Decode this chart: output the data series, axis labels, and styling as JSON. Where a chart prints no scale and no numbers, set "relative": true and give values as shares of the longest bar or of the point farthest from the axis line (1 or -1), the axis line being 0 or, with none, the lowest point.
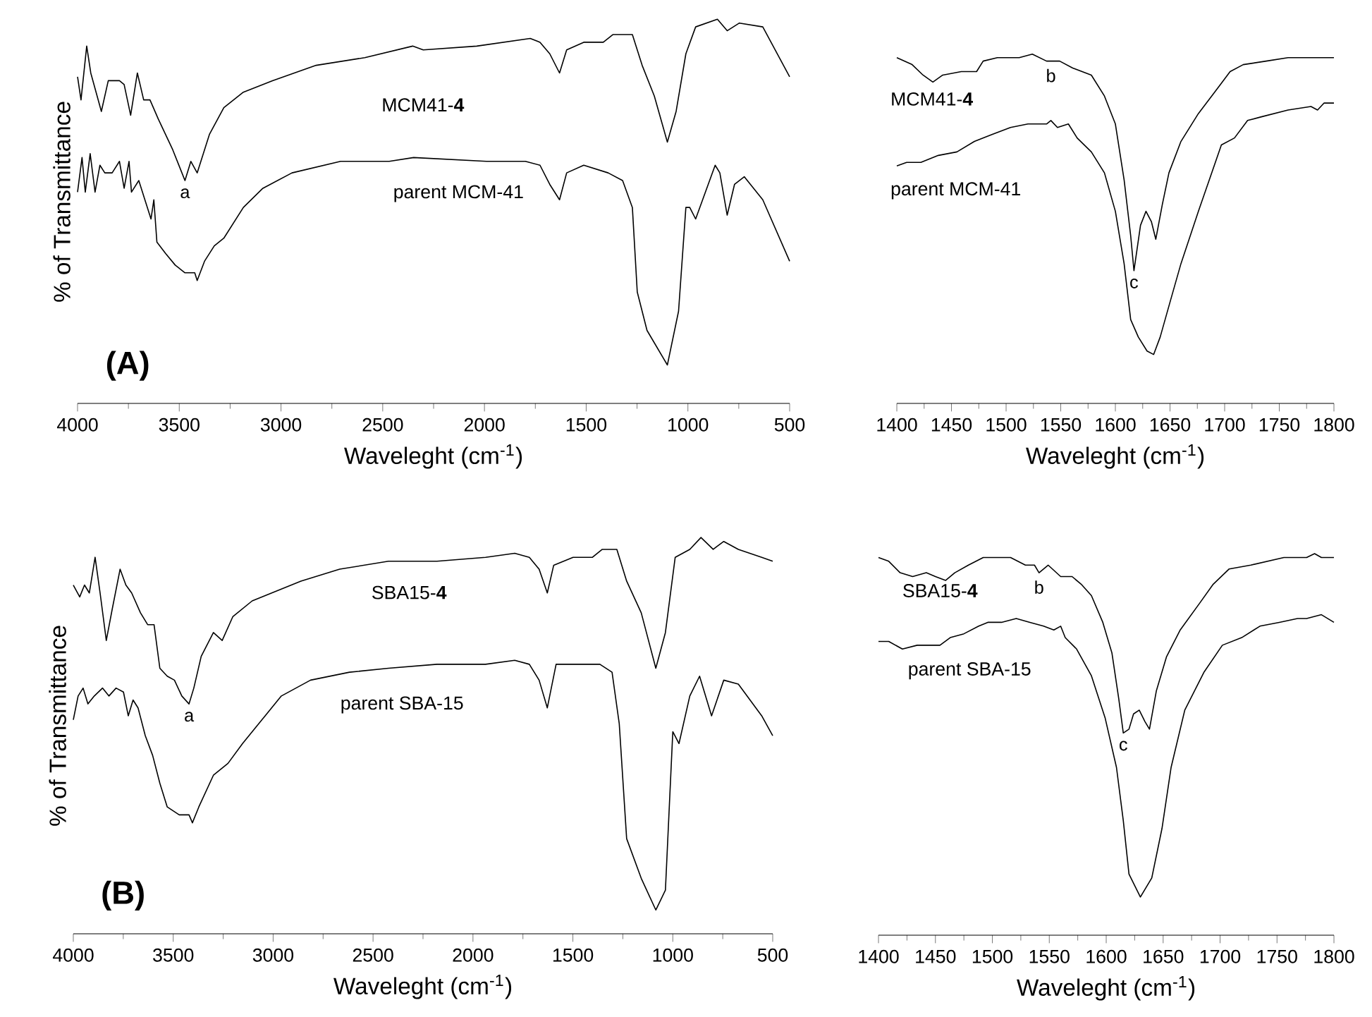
{
  "chart_data": [
    {
      "type": "line",
      "relative": true,
      "xlim": [
        4000,
        500
      ],
      "xticks": [
        4000,
        3500,
        3000,
        2500,
        2000,
        1500,
        1000,
        500
      ],
      "xlabel": "Waveleght (cm$^{-1}$)",
      "ylabel": "% of Transmittance",
      "series": [
        {
          "name": "MCM41-**4**",
          "color": "#000000",
          "x": [
            4000,
            3983,
            3955,
            3935,
            3883,
            3849,
            3794,
            3771,
            3739,
            3706,
            3675,
            3644,
            3603,
            3532,
            3472,
            3443,
            3412,
            3352,
            3281,
            3185,
            3042,
            2827,
            2588,
            2353,
            2301,
            2038,
            1775,
            1727,
            1679,
            1631,
            1596,
            1512,
            1416,
            1369,
            1273,
            1225,
            1165,
            1101,
            1058,
            1010,
            962,
            855,
            807,
            747,
            632,
            500
          ],
          "values": [
            0.85,
            0.79,
            0.93,
            0.86,
            0.76,
            0.84,
            0.84,
            0.83,
            0.75,
            0.86,
            0.79,
            0.79,
            0.74,
            0.66,
            0.58,
            0.63,
            0.6,
            0.7,
            0.77,
            0.81,
            0.84,
            0.88,
            0.9,
            0.93,
            0.92,
            0.93,
            0.95,
            0.94,
            0.91,
            0.86,
            0.92,
            0.94,
            0.94,
            0.96,
            0.96,
            0.88,
            0.8,
            0.68,
            0.76,
            0.91,
            0.98,
            1.0,
            0.97,
            0.99,
            0.98,
            0.85
          ]
        },
        {
          "name": "parent MCM-41",
          "color": "#000000",
          "x": [
            4000,
            3978,
            3962,
            3938,
            3914,
            3890,
            3866,
            3830,
            3794,
            3771,
            3747,
            3735,
            3699,
            3663,
            3639,
            3625,
            3610,
            3567,
            3520,
            3472,
            3424,
            3412,
            3376,
            3328,
            3281,
            3185,
            3089,
            2946,
            2707,
            2468,
            2348,
            1990,
            1799,
            1727,
            1679,
            1631,
            1596,
            1512,
            1392,
            1321,
            1273,
            1249,
            1201,
            1101,
            1046,
            1010,
            991,
            962,
            914,
            866,
            843,
            807,
            771,
            723,
            632,
            500
          ],
          "values": [
            0.55,
            0.64,
            0.55,
            0.65,
            0.55,
            0.62,
            0.6,
            0.6,
            0.63,
            0.56,
            0.63,
            0.55,
            0.58,
            0.52,
            0.48,
            0.53,
            0.42,
            0.39,
            0.36,
            0.34,
            0.34,
            0.32,
            0.37,
            0.41,
            0.43,
            0.51,
            0.56,
            0.6,
            0.63,
            0.63,
            0.64,
            0.63,
            0.63,
            0.62,
            0.57,
            0.53,
            0.6,
            0.62,
            0.6,
            0.58,
            0.51,
            0.29,
            0.19,
            0.1,
            0.24,
            0.51,
            0.51,
            0.48,
            0.55,
            0.62,
            0.6,
            0.49,
            0.57,
            0.59,
            0.53,
            0.37
          ]
        }
      ],
      "annotations": [
        {
          "text": "a",
          "x": 3472,
          "y": 0.58
        },
        "**(A)**"
      ]
    },
    {
      "type": "line",
      "relative": true,
      "xlim": [
        1400,
        1800
      ],
      "xticks": [
        1400,
        1450,
        1500,
        1550,
        1600,
        1650,
        1700,
        1750,
        1800
      ],
      "xlabel": "Waveleght (cm$^{-1}$)",
      "series": [
        {
          "name": "MCM41-**4**",
          "color": "#000000",
          "x": [
            1400,
            1414,
            1424,
            1433,
            1442,
            1459,
            1473,
            1479,
            1492,
            1512,
            1524,
            1537,
            1541,
            1549,
            1561,
            1578,
            1590,
            1600,
            1608,
            1614,
            1617,
            1623,
            1628,
            1633,
            1637,
            1643,
            1649,
            1660,
            1676,
            1693,
            1705,
            1717,
            1738,
            1758,
            1779,
            1800
          ],
          "values": [
            0.99,
            0.97,
            0.94,
            0.92,
            0.94,
            0.95,
            0.95,
            0.98,
            0.99,
            0.99,
            1.0,
            0.98,
            0.98,
            0.98,
            0.96,
            0.94,
            0.88,
            0.8,
            0.64,
            0.48,
            0.38,
            0.51,
            0.55,
            0.52,
            0.47,
            0.57,
            0.66,
            0.75,
            0.83,
            0.9,
            0.95,
            0.97,
            0.98,
            0.99,
            0.99,
            0.99
          ]
        },
        {
          "name": "parent MCM-41",
          "color": "#000000",
          "x": [
            1400,
            1409,
            1422,
            1438,
            1455,
            1471,
            1487,
            1504,
            1520,
            1537,
            1541,
            1547,
            1557,
            1565,
            1578,
            1590,
            1600,
            1608,
            1614,
            1621,
            1629,
            1635,
            1641,
            1650,
            1660,
            1676,
            1697,
            1709,
            1721,
            1733,
            1758,
            1779,
            1785,
            1791,
            1800
          ],
          "values": [
            0.68,
            0.69,
            0.69,
            0.71,
            0.72,
            0.75,
            0.77,
            0.79,
            0.8,
            0.8,
            0.81,
            0.79,
            0.8,
            0.76,
            0.72,
            0.66,
            0.55,
            0.4,
            0.24,
            0.19,
            0.15,
            0.14,
            0.19,
            0.29,
            0.4,
            0.55,
            0.74,
            0.76,
            0.81,
            0.82,
            0.84,
            0.85,
            0.84,
            0.86,
            0.86
          ]
        }
      ],
      "annotations": [
        {
          "text": "b",
          "x": 1541,
          "y": 0.98
        },
        {
          "text": "c",
          "x": 1617,
          "y": 0.38
        }
      ]
    },
    {
      "type": "line",
      "relative": true,
      "xlim": [
        4000,
        500
      ],
      "xticks": [
        4000,
        3500,
        3000,
        2500,
        2000,
        1500,
        1000,
        500
      ],
      "xlabel": "Waveleght (cm$^{-1}$)",
      "ylabel": "% of Transmittance",
      "series": [
        {
          "name": "SBA15-**4**",
          "color": "#000000",
          "x": [
            4000,
            3968,
            3944,
            3920,
            3891,
            3866,
            3835,
            3805,
            3766,
            3737,
            3708,
            3664,
            3628,
            3596,
            3567,
            3530,
            3494,
            3457,
            3421,
            3397,
            3360,
            3299,
            3255,
            3202,
            3105,
            3007,
            2861,
            2667,
            2423,
            2180,
            1937,
            1791,
            1718,
            1669,
            1628,
            1596,
            1499,
            1402,
            1353,
            1280,
            1231,
            1158,
            1085,
            1037,
            988,
            915,
            859,
            798,
            745,
            672,
            555,
            500
          ],
          "values": [
            0.88,
            0.85,
            0.88,
            0.86,
            0.95,
            0.86,
            0.74,
            0.82,
            0.92,
            0.88,
            0.86,
            0.81,
            0.78,
            0.78,
            0.67,
            0.65,
            0.64,
            0.6,
            0.58,
            0.62,
            0.7,
            0.76,
            0.74,
            0.8,
            0.84,
            0.86,
            0.89,
            0.92,
            0.94,
            0.94,
            0.95,
            0.96,
            0.95,
            0.92,
            0.86,
            0.93,
            0.95,
            0.95,
            0.97,
            0.97,
            0.89,
            0.81,
            0.67,
            0.76,
            0.95,
            0.97,
            1.0,
            0.97,
            0.99,
            0.97,
            0.95,
            0.94
          ]
        },
        {
          "name": "parent SBA-15",
          "color": "#000000",
          "x": [
            4000,
            3976,
            3951,
            3927,
            3895,
            3854,
            3822,
            3786,
            3749,
            3725,
            3701,
            3676,
            3640,
            3603,
            3567,
            3530,
            3470,
            3421,
            3404,
            3372,
            3299,
            3226,
            3153,
            3056,
            2959,
            2813,
            2618,
            2423,
            2180,
            1937,
            1791,
            1718,
            1669,
            1628,
            1584,
            1499,
            1414,
            1365,
            1304,
            1268,
            1231,
            1158,
            1085,
            1037,
            1000,
            969,
            915,
            866,
            806,
            745,
            672,
            555,
            500
          ],
          "values": [
            0.54,
            0.6,
            0.62,
            0.58,
            0.6,
            0.62,
            0.6,
            0.62,
            0.61,
            0.55,
            0.59,
            0.57,
            0.5,
            0.45,
            0.38,
            0.32,
            0.3,
            0.3,
            0.28,
            0.32,
            0.4,
            0.43,
            0.48,
            0.54,
            0.6,
            0.64,
            0.66,
            0.67,
            0.68,
            0.68,
            0.69,
            0.68,
            0.64,
            0.57,
            0.68,
            0.68,
            0.68,
            0.68,
            0.66,
            0.53,
            0.24,
            0.14,
            0.06,
            0.11,
            0.51,
            0.48,
            0.6,
            0.65,
            0.55,
            0.64,
            0.63,
            0.55,
            0.5
          ]
        }
      ],
      "annotations": [
        {
          "text": "a",
          "x": 3421,
          "y": 0.58
        },
        "**(B)**"
      ]
    },
    {
      "type": "line",
      "relative": true,
      "xlim": [
        1400,
        1800
      ],
      "xticks": [
        1400,
        1450,
        1500,
        1550,
        1600,
        1650,
        1700,
        1750,
        1800
      ],
      "xlabel": "Waveleght (cm$^{-1}$)",
      "series": [
        {
          "name": "SBA15-**4**",
          "color": "#000000",
          "x": [
            1400,
            1409,
            1419,
            1430,
            1442,
            1450,
            1459,
            1467,
            1479,
            1492,
            1504,
            1516,
            1529,
            1537,
            1541,
            1549,
            1560,
            1570,
            1578,
            1587,
            1597,
            1605,
            1611,
            1615,
            1620,
            1624,
            1629,
            1634,
            1638,
            1644,
            1653,
            1665,
            1682,
            1694,
            1708,
            1727,
            1756,
            1776,
            1783,
            1789,
            1800
          ],
          "values": [
            0.99,
            0.98,
            0.95,
            0.94,
            0.95,
            0.94,
            0.93,
            0.95,
            0.97,
            0.99,
            0.99,
            0.99,
            0.97,
            0.97,
            0.95,
            0.97,
            0.94,
            0.94,
            0.92,
            0.89,
            0.82,
            0.74,
            0.62,
            0.53,
            0.54,
            0.58,
            0.59,
            0.56,
            0.54,
            0.64,
            0.73,
            0.8,
            0.87,
            0.92,
            0.96,
            0.97,
            0.99,
            0.99,
            1.0,
            0.99,
            0.99
          ]
        },
        {
          "name": "parent SBA-15",
          "color": "#000000",
          "x": [
            1400,
            1409,
            1421,
            1434,
            1446,
            1454,
            1463,
            1475,
            1488,
            1496,
            1508,
            1521,
            1533,
            1545,
            1554,
            1560,
            1564,
            1574,
            1587,
            1599,
            1609,
            1615,
            1620,
            1630,
            1640,
            1649,
            1657,
            1669,
            1686,
            1702,
            1719,
            1735,
            1752,
            1768,
            1776,
            1789,
            1800
          ],
          "values": [
            0.77,
            0.77,
            0.75,
            0.76,
            0.76,
            0.76,
            0.78,
            0.79,
            0.81,
            0.82,
            0.82,
            0.83,
            0.82,
            0.81,
            0.8,
            0.81,
            0.78,
            0.75,
            0.68,
            0.57,
            0.44,
            0.3,
            0.16,
            0.1,
            0.15,
            0.28,
            0.44,
            0.59,
            0.69,
            0.76,
            0.78,
            0.81,
            0.82,
            0.83,
            0.83,
            0.84,
            0.82
          ]
        }
      ],
      "annotations": [
        {
          "text": "b",
          "x": 1541,
          "y": 0.95
        },
        {
          "text": "c",
          "x": 1615,
          "y": 0.53
        }
      ]
    }
  ]
}
